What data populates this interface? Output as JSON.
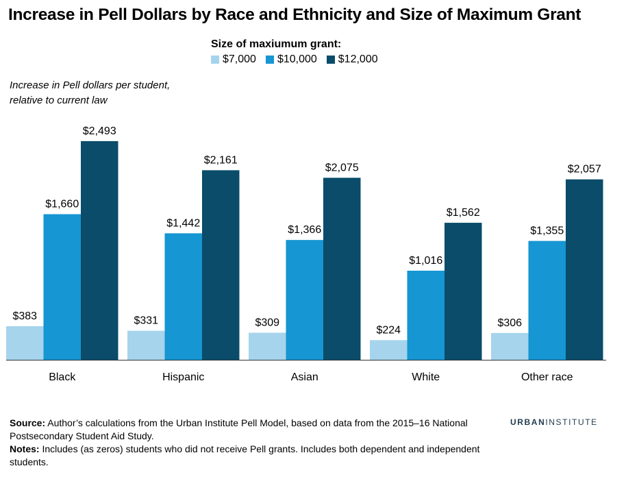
{
  "title": "Increase in Pell Dollars by Race and Ethnicity and Size of Maximum Grant",
  "legend": {
    "title": "Size of maxiumum grant:",
    "items": [
      "$7,000",
      "$10,000",
      "$12,000"
    ]
  },
  "axis_note": {
    "line1": "Increase in Pell dollars per student,",
    "line2": "relative to current law"
  },
  "colors": {
    "series_7000": "#a6d4ec",
    "series_10000": "#1696d2",
    "series_12000": "#0a4c6a",
    "baseline": "#333333",
    "brand": "#1f3a4d"
  },
  "chart_data": {
    "type": "bar",
    "categories": [
      "Black",
      "Hispanic",
      "Asian",
      "White",
      "Other race"
    ],
    "series": [
      {
        "name": "$7,000",
        "values": [
          383,
          331,
          309,
          224,
          306
        ],
        "labels": [
          "$383",
          "$331",
          "$309",
          "$224",
          "$306"
        ]
      },
      {
        "name": "$10,000",
        "values": [
          1660,
          1442,
          1366,
          1016,
          1355
        ],
        "labels": [
          "$1,660",
          "$1,442",
          "$1,366",
          "$1,016",
          "$1,355"
        ]
      },
      {
        "name": "$12,000",
        "values": [
          2493,
          2161,
          2075,
          1562,
          2057
        ],
        "labels": [
          "$2,493",
          "$2,161",
          "$2,075",
          "$1,562",
          "$2,057"
        ]
      }
    ],
    "ylabel": "Increase in Pell dollars per student, relative to current law",
    "ylim": [
      0,
      2500
    ],
    "grid": false,
    "legend_position": "top-center"
  },
  "footer": {
    "source_label": "Source:",
    "source_text": " Author’s calculations from the Urban Institute Pell Model, based on data from the 2015–16 National Postsecondary Student Aid Study.",
    "notes_label": "Notes:",
    "notes_text": " Includes (as zeros) students who did not receive Pell grants. Includes both dependent and independent students."
  },
  "brand": {
    "part1": "URBAN",
    "part2": "INSTITUTE"
  }
}
